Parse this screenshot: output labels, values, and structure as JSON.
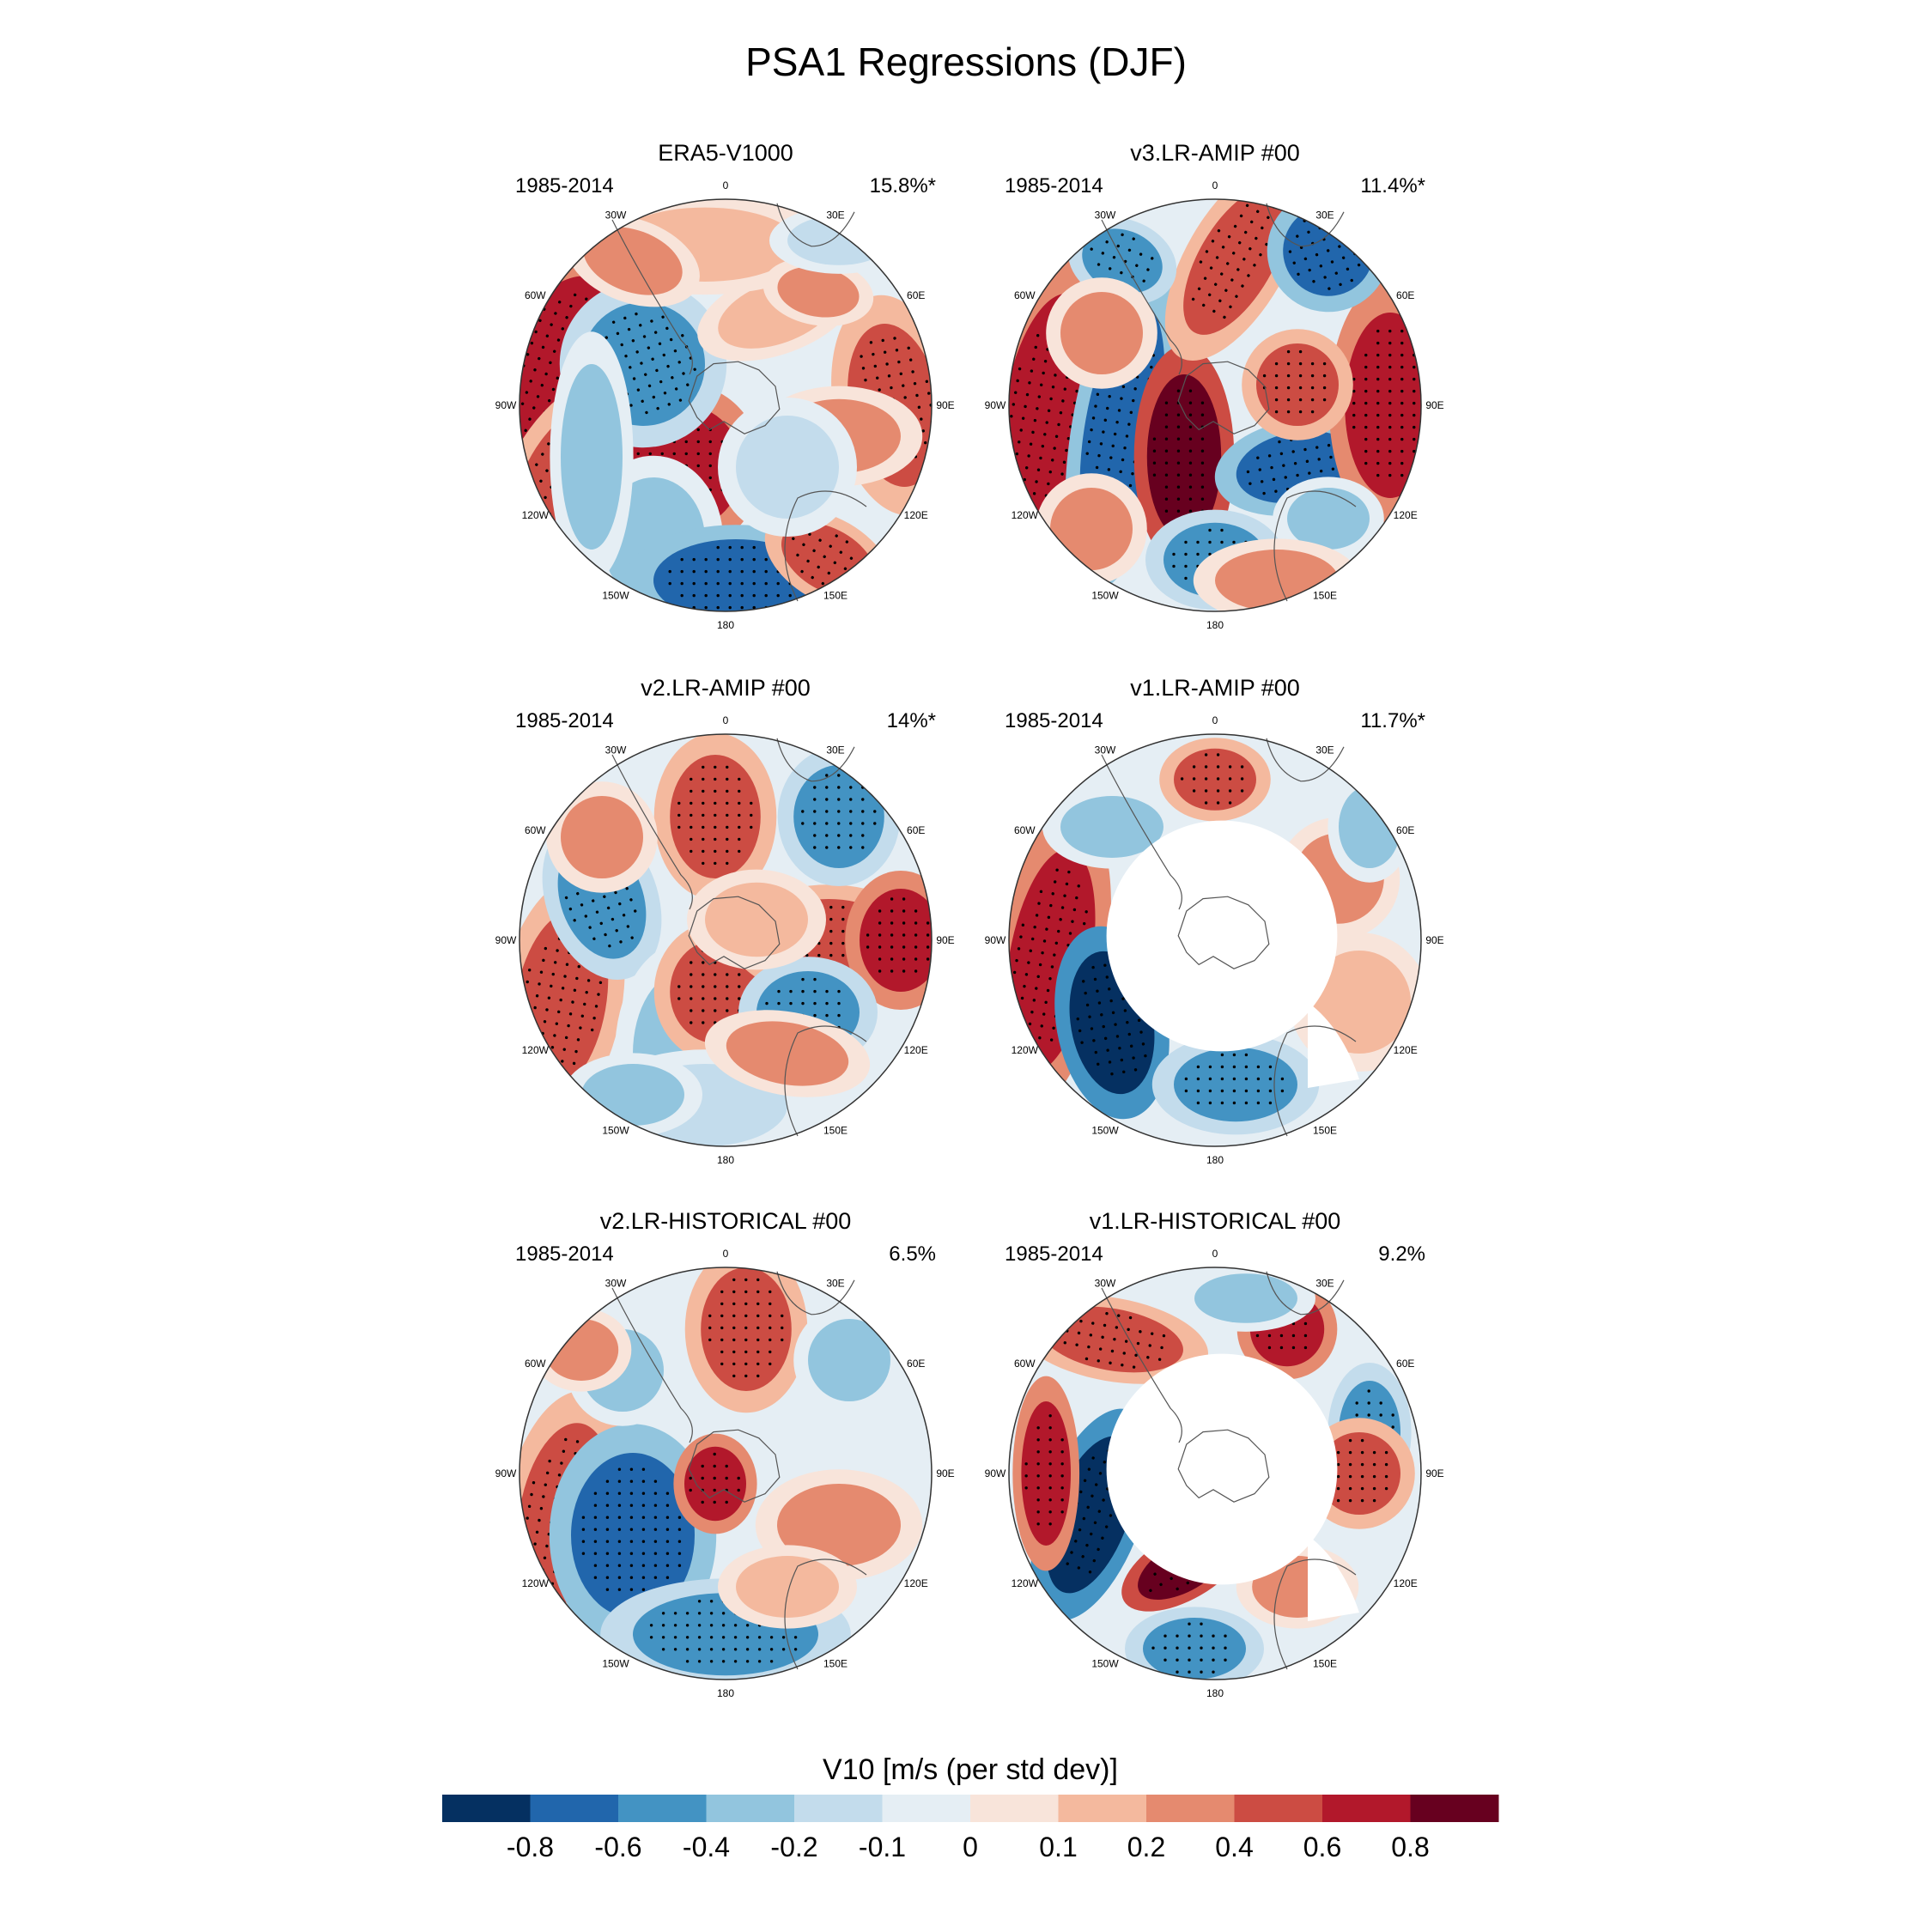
{
  "chart_data": {
    "type": "polar-stereographic contour maps",
    "title": "PSA1 Regressions (DJF)",
    "colorbar": {
      "title": "V10 [m/s (per std dev)]",
      "tick_labels": [
        "-0.8",
        "-0.6",
        "-0.4",
        "-0.2",
        "-0.1",
        "0",
        "0.1",
        "0.2",
        "0.4",
        "0.6",
        "0.8"
      ],
      "colors": [
        "#053061",
        "#2166ac",
        "#4393c3",
        "#92c5de",
        "#c3dcec",
        "#e5eef4",
        "#f8e4da",
        "#f4b99e",
        "#e58a6f",
        "#cc4c43",
        "#b2182b",
        "#67001f"
      ]
    },
    "longitude_labels": [
      "0",
      "30E",
      "60E",
      "90E",
      "120E",
      "150E",
      "180",
      "150W",
      "120W",
      "90W",
      "60W",
      "30W"
    ],
    "panels": [
      {
        "title": "ERA5-V1000",
        "period": "1985-2014",
        "percent": "15.8%*"
      },
      {
        "title": "v3.LR-AMIP  #00",
        "period": "1985-2014",
        "percent": "11.4%*"
      },
      {
        "title": "v2.LR-AMIP  #00",
        "period": "1985-2014",
        "percent": "14%*"
      },
      {
        "title": "v1.LR-AMIP  #00",
        "period": "1985-2014",
        "percent": "11.7%*"
      },
      {
        "title": "v2.LR-HISTORICAL  #00",
        "period": "1985-2014",
        "percent": "6.5%"
      },
      {
        "title": "v1.LR-HISTORICAL  #00",
        "period": "1985-2014",
        "percent": "9.2%"
      }
    ]
  }
}
